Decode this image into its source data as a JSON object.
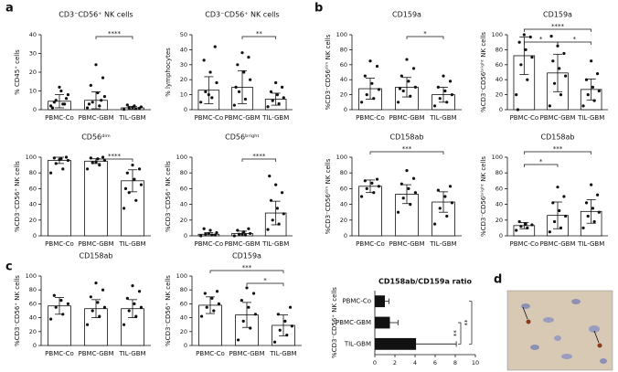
{
  "panels": [
    "a",
    "b",
    "c",
    "d"
  ],
  "chart_data": [
    {
      "type": "bar",
      "title": "CD3⁻CD56⁺ NK cells",
      "ylabel": "% CD45⁺ cells",
      "categories": [
        "PBMC-Co",
        "PBMC-GBM",
        "TIL-GBM"
      ],
      "values": [
        4.5,
        5,
        1
      ],
      "errors": [
        3.5,
        4.5,
        0.8
      ],
      "points": [
        [
          2,
          3,
          5,
          8,
          10,
          4,
          6,
          12,
          1,
          3
        ],
        [
          1,
          2,
          4,
          7,
          9,
          13,
          17,
          24,
          3,
          5
        ],
        [
          0.2,
          0.5,
          1,
          1.5,
          2,
          2.5,
          0.8,
          1.2
        ]
      ],
      "ylim": [
        0,
        40
      ],
      "yticks": [
        0,
        10,
        20,
        30,
        40
      ],
      "annotations": [
        {
          "text": "****",
          "from": 1,
          "to": 2
        }
      ]
    },
    {
      "type": "bar",
      "title": "CD3⁻CD56⁺ NK cells",
      "ylabel": "% lymphocytes",
      "categories": [
        "PBMC-Co",
        "PBMC-GBM",
        "TIL-GBM"
      ],
      "values": [
        13,
        15,
        7
      ],
      "errors": [
        9,
        11,
        4
      ],
      "points": [
        [
          5,
          8,
          12,
          18,
          25,
          33,
          42,
          10
        ],
        [
          3,
          7,
          12,
          20,
          25,
          30,
          35,
          38,
          15
        ],
        [
          2,
          4,
          6,
          8,
          10,
          12,
          15,
          18
        ]
      ],
      "ylim": [
        0,
        50
      ],
      "yticks": [
        0,
        10,
        20,
        30,
        40,
        50
      ],
      "annotations": [
        {
          "text": "**",
          "from": 1,
          "to": 2
        }
      ]
    },
    {
      "type": "bar",
      "title": "CD56ᵈⁱᵐ",
      "ylabel": "%CD3⁻CD56⁺ NK cells",
      "categories": [
        "PBMC-Co",
        "PBMC-GBM",
        "TIL-GBM"
      ],
      "values": [
        96,
        95,
        70
      ],
      "errors": [
        4,
        3,
        14
      ],
      "points": [
        [
          80,
          85,
          92,
          96,
          98,
          99,
          100,
          97
        ],
        [
          85,
          90,
          93,
          96,
          98,
          99,
          100,
          94
        ],
        [
          35,
          45,
          55,
          65,
          72,
          80,
          85,
          90,
          60
        ]
      ],
      "ylim": [
        0,
        100
      ],
      "yticks": [
        0,
        20,
        40,
        60,
        80,
        100
      ],
      "annotations": [
        {
          "text": "****",
          "from": 1,
          "to": 2
        }
      ]
    },
    {
      "type": "bar",
      "title": "CD56ᵇʳⁱᵍʰᵗ",
      "ylabel": "%CD3⁻CD56⁺ NK cells",
      "categories": [
        "PBMC-Co",
        "PBMC-GBM",
        "TIL-GBM"
      ],
      "values": [
        2,
        3,
        29
      ],
      "errors": [
        2,
        3,
        15
      ],
      "points": [
        [
          0,
          1,
          2,
          4,
          7,
          9,
          1,
          3
        ],
        [
          0,
          1,
          2,
          3,
          5,
          7,
          9,
          2
        ],
        [
          8,
          15,
          20,
          28,
          35,
          45,
          55,
          65,
          76
        ]
      ],
      "ylim": [
        0,
        100
      ],
      "yticks": [
        0,
        20,
        40,
        60,
        80,
        100
      ],
      "annotations": [
        {
          "text": "****",
          "from": 1,
          "to": 2
        }
      ]
    },
    {
      "type": "bar",
      "title": "CD159a",
      "ylabel": "%CD3⁻CD56ᵈⁱᵐ NK cells",
      "categories": [
        "PBMC-Co",
        "PBMC-GBM",
        "TIL-GBM"
      ],
      "values": [
        28,
        30,
        20
      ],
      "errors": [
        14,
        13,
        10
      ],
      "points": [
        [
          10,
          15,
          20,
          27,
          35,
          45,
          58,
          65
        ],
        [
          10,
          18,
          25,
          30,
          38,
          45,
          55,
          67,
          28
        ],
        [
          5,
          10,
          15,
          20,
          25,
          30,
          38,
          45
        ]
      ],
      "ylim": [
        0,
        100
      ],
      "yticks": [
        0,
        20,
        40,
        60,
        80,
        100
      ],
      "annotations": [
        {
          "text": "*",
          "from": 1,
          "to": 2
        }
      ]
    },
    {
      "type": "bar",
      "title": "CD159a",
      "ylabel": "%CD3⁻CD56ᵇʳⁱᵍʰᵗ NK cells",
      "categories": [
        "PBMC-Co",
        "PBMC-GBM",
        "TIL-GBM"
      ],
      "values": [
        72,
        49,
        27
      ],
      "errors": [
        25,
        25,
        14
      ],
      "points": [
        [
          20,
          40,
          60,
          70,
          80,
          90,
          97,
          100,
          0
        ],
        [
          5,
          20,
          35,
          45,
          55,
          65,
          75,
          85,
          98
        ],
        [
          5,
          12,
          20,
          25,
          30,
          40,
          48,
          65
        ]
      ],
      "ylim": [
        0,
        100
      ],
      "yticks": [
        0,
        20,
        40,
        60,
        80,
        100
      ],
      "annotations": [
        {
          "text": "****",
          "from": 0,
          "to": 2
        },
        {
          "text": "*",
          "from": 0,
          "to": 1
        },
        {
          "text": "*",
          "from": 1,
          "to": 2
        }
      ]
    },
    {
      "type": "bar",
      "title": "CD158ab",
      "ylabel": "%CD3⁻CD56ᵈⁱᵐ NK cells",
      "categories": [
        "PBMC-Co",
        "PBMC-GBM",
        "TIL-GBM"
      ],
      "values": [
        63,
        53,
        43
      ],
      "errors": [
        8,
        12,
        13
      ],
      "points": [
        [
          50,
          55,
          60,
          63,
          67,
          70,
          72
        ],
        [
          30,
          40,
          48,
          55,
          60,
          66,
          73,
          83
        ],
        [
          15,
          25,
          35,
          42,
          50,
          58,
          63
        ]
      ],
      "ylim": [
        0,
        100
      ],
      "yticks": [
        0,
        20,
        40,
        60,
        80,
        100
      ],
      "annotations": [
        {
          "text": "***",
          "from": 0,
          "to": 2
        }
      ]
    },
    {
      "type": "bar",
      "title": "CD158ab",
      "ylabel": "%CD3⁻CD56ᵇʳⁱᵍʰᵗ NK cells",
      "categories": [
        "PBMC-Co",
        "PBMC-GBM",
        "TIL-GBM"
      ],
      "values": [
        13,
        26,
        31
      ],
      "errors": [
        4,
        17,
        15
      ],
      "points": [
        [
          7,
          10,
          12,
          14,
          15,
          18
        ],
        [
          5,
          10,
          18,
          25,
          32,
          42,
          50,
          62
        ],
        [
          10,
          18,
          25,
          30,
          35,
          42,
          52,
          65
        ]
      ],
      "ylim": [
        0,
        100
      ],
      "yticks": [
        0,
        20,
        40,
        60,
        80,
        100
      ],
      "annotations": [
        {
          "text": "***",
          "from": 0,
          "to": 2
        },
        {
          "text": "*",
          "from": 0,
          "to": 1
        }
      ]
    },
    {
      "type": "bar",
      "title": "CD158ab",
      "ylabel": "%CD3⁻CD56⁺ NK cells",
      "categories": [
        "PBMC-Co",
        "PBMC-GBM",
        "TIL-GBM"
      ],
      "values": [
        57,
        53,
        53
      ],
      "errors": [
        12,
        13,
        13
      ],
      "points": [
        [
          38,
          45,
          55,
          60,
          65,
          72
        ],
        [
          30,
          42,
          50,
          55,
          62,
          70,
          80,
          90
        ],
        [
          30,
          42,
          50,
          55,
          60,
          68,
          78,
          86
        ]
      ],
      "ylim": [
        0,
        100
      ],
      "yticks": [
        0,
        20,
        40,
        60,
        80,
        100
      ],
      "annotations": []
    },
    {
      "type": "bar",
      "title": "CD159a",
      "ylabel": "%CD3⁻CD56⁺ NK cells",
      "categories": [
        "PBMC-Co",
        "PBMC-GBM",
        "TIL-GBM"
      ],
      "values": [
        58,
        44,
        29
      ],
      "errors": [
        12,
        18,
        15
      ],
      "points": [
        [
          42,
          50,
          55,
          60,
          68,
          75,
          78
        ],
        [
          8,
          25,
          35,
          45,
          55,
          65,
          75,
          83
        ],
        [
          5,
          15,
          22,
          28,
          35,
          45,
          55
        ]
      ],
      "ylim": [
        0,
        100
      ],
      "yticks": [
        0,
        20,
        40,
        60,
        80,
        100
      ],
      "annotations": [
        {
          "text": "***",
          "from": 0,
          "to": 2
        },
        {
          "text": "*",
          "from": 1,
          "to": 2
        }
      ]
    },
    {
      "type": "hbar",
      "title": "CD158ab/CD159a ratio",
      "ylabel": "%CD3⁻CD56⁺ NK cells",
      "categories": [
        "PBMC-Co",
        "PBMC-GBM",
        "TIL-GBM"
      ],
      "values": [
        1,
        1.5,
        4.1
      ],
      "errors": [
        0.4,
        0.8,
        4
      ],
      "xlim": [
        0,
        10
      ],
      "xticks": [
        0,
        2,
        4,
        6,
        8,
        10
      ],
      "annotations": [
        {
          "text": "**",
          "from": 1,
          "to": 2
        },
        {
          "text": "**",
          "from": 0,
          "to": 2
        }
      ]
    }
  ]
}
